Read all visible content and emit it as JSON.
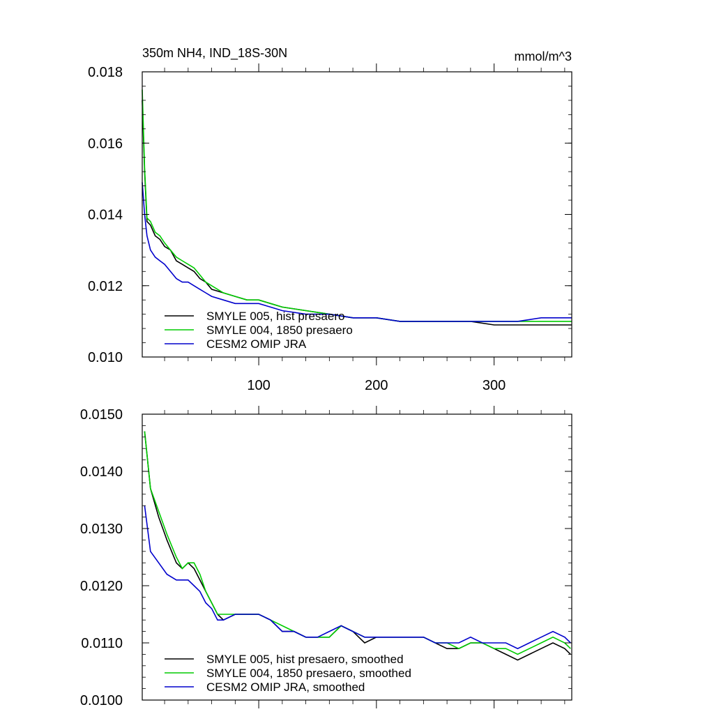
{
  "chart_data": [
    {
      "type": "line",
      "title": "350m NH4, IND_18S-30N",
      "units": "mmol/m^3",
      "xlim": [
        1,
        366
      ],
      "ylim": [
        0.01,
        0.018
      ],
      "x_ticks": [
        100,
        200,
        300
      ],
      "y_ticks": [
        "0.010",
        "0.012",
        "0.014",
        "0.016",
        "0.018"
      ],
      "grid": false,
      "legend_position": "bottom-left",
      "series": [
        {
          "name": "SMYLE 005, hist presaero",
          "color": "#000000",
          "points": [
            [
              1,
              0.0172
            ],
            [
              3,
              0.0152
            ],
            [
              5,
              0.0138
            ],
            [
              8,
              0.0137
            ],
            [
              12,
              0.0134
            ],
            [
              16,
              0.0133
            ],
            [
              20,
              0.0131
            ],
            [
              25,
              0.013
            ],
            [
              30,
              0.0127
            ],
            [
              35,
              0.0126
            ],
            [
              40,
              0.0125
            ],
            [
              45,
              0.0124
            ],
            [
              50,
              0.0122
            ],
            [
              55,
              0.0121
            ],
            [
              60,
              0.0119
            ],
            [
              70,
              0.0118
            ],
            [
              80,
              0.0117
            ],
            [
              90,
              0.0116
            ],
            [
              100,
              0.0116
            ],
            [
              110,
              0.0115
            ],
            [
              120,
              0.0114
            ],
            [
              140,
              0.0113
            ],
            [
              160,
              0.0112
            ],
            [
              180,
              0.0111
            ],
            [
              200,
              0.0111
            ],
            [
              220,
              0.011
            ],
            [
              240,
              0.011
            ],
            [
              260,
              0.011
            ],
            [
              280,
              0.011
            ],
            [
              300,
              0.0109
            ],
            [
              320,
              0.0109
            ],
            [
              340,
              0.0109
            ],
            [
              366,
              0.0109
            ]
          ]
        },
        {
          "name": "SMYLE 004, 1850 presaero",
          "color": "#00cc00",
          "points": [
            [
              1,
              0.0175
            ],
            [
              3,
              0.0153
            ],
            [
              5,
              0.0139
            ],
            [
              8,
              0.0138
            ],
            [
              12,
              0.0135
            ],
            [
              16,
              0.0134
            ],
            [
              20,
              0.0132
            ],
            [
              25,
              0.013
            ],
            [
              30,
              0.0128
            ],
            [
              35,
              0.0127
            ],
            [
              40,
              0.0126
            ],
            [
              45,
              0.0125
            ],
            [
              50,
              0.0123
            ],
            [
              55,
              0.0121
            ],
            [
              60,
              0.012
            ],
            [
              70,
              0.0118
            ],
            [
              80,
              0.0117
            ],
            [
              90,
              0.0116
            ],
            [
              100,
              0.0116
            ],
            [
              110,
              0.0115
            ],
            [
              120,
              0.0114
            ],
            [
              140,
              0.0113
            ],
            [
              160,
              0.0112
            ],
            [
              180,
              0.0111
            ],
            [
              200,
              0.0111
            ],
            [
              220,
              0.011
            ],
            [
              240,
              0.011
            ],
            [
              260,
              0.011
            ],
            [
              280,
              0.011
            ],
            [
              300,
              0.011
            ],
            [
              320,
              0.011
            ],
            [
              340,
              0.011
            ],
            [
              366,
              0.011
            ]
          ]
        },
        {
          "name": "CESM2 OMIP JRA",
          "color": "#0000cc",
          "points": [
            [
              1,
              0.0149
            ],
            [
              3,
              0.014
            ],
            [
              5,
              0.0134
            ],
            [
              8,
              0.013
            ],
            [
              12,
              0.0128
            ],
            [
              16,
              0.0127
            ],
            [
              20,
              0.0126
            ],
            [
              25,
              0.0124
            ],
            [
              30,
              0.0122
            ],
            [
              35,
              0.0121
            ],
            [
              40,
              0.0121
            ],
            [
              45,
              0.012
            ],
            [
              50,
              0.0119
            ],
            [
              55,
              0.0118
            ],
            [
              60,
              0.0117
            ],
            [
              70,
              0.0116
            ],
            [
              80,
              0.0115
            ],
            [
              90,
              0.0115
            ],
            [
              100,
              0.0115
            ],
            [
              110,
              0.0114
            ],
            [
              120,
              0.0113
            ],
            [
              140,
              0.0112
            ],
            [
              160,
              0.0112
            ],
            [
              180,
              0.0111
            ],
            [
              200,
              0.0111
            ],
            [
              220,
              0.011
            ],
            [
              240,
              0.011
            ],
            [
              260,
              0.011
            ],
            [
              280,
              0.011
            ],
            [
              300,
              0.011
            ],
            [
              320,
              0.011
            ],
            [
              340,
              0.0111
            ],
            [
              366,
              0.0111
            ]
          ]
        }
      ]
    },
    {
      "type": "line",
      "xlim": [
        1,
        366
      ],
      "ylim": [
        0.01,
        0.015
      ],
      "y_ticks": [
        "0.0100",
        "0.0110",
        "0.0120",
        "0.0130",
        "0.0140",
        "0.0150"
      ],
      "grid": false,
      "legend_position": "bottom-left",
      "series": [
        {
          "name": "SMYLE 005, hist presaero, smoothed",
          "color": "#000000",
          "points": [
            [
              3,
              0.0147
            ],
            [
              8,
              0.0137
            ],
            [
              15,
              0.0132
            ],
            [
              22,
              0.0128
            ],
            [
              30,
              0.0124
            ],
            [
              35,
              0.0123
            ],
            [
              40,
              0.0124
            ],
            [
              45,
              0.0123
            ],
            [
              50,
              0.0121
            ],
            [
              55,
              0.0119
            ],
            [
              60,
              0.0117
            ],
            [
              65,
              0.0115
            ],
            [
              70,
              0.0114
            ],
            [
              80,
              0.0115
            ],
            [
              90,
              0.0115
            ],
            [
              100,
              0.0115
            ],
            [
              110,
              0.0114
            ],
            [
              120,
              0.0112
            ],
            [
              130,
              0.0112
            ],
            [
              140,
              0.0111
            ],
            [
              150,
              0.0111
            ],
            [
              160,
              0.0111
            ],
            [
              170,
              0.0113
            ],
            [
              180,
              0.0112
            ],
            [
              190,
              0.011
            ],
            [
              200,
              0.0111
            ],
            [
              210,
              0.0111
            ],
            [
              220,
              0.0111
            ],
            [
              230,
              0.0111
            ],
            [
              240,
              0.0111
            ],
            [
              250,
              0.011
            ],
            [
              260,
              0.0109
            ],
            [
              270,
              0.0109
            ],
            [
              280,
              0.011
            ],
            [
              290,
              0.011
            ],
            [
              300,
              0.0109
            ],
            [
              310,
              0.0108
            ],
            [
              320,
              0.0107
            ],
            [
              330,
              0.0108
            ],
            [
              340,
              0.0109
            ],
            [
              350,
              0.011
            ],
            [
              360,
              0.0109
            ],
            [
              365,
              0.0108
            ]
          ]
        },
        {
          "name": "SMYLE 004, 1850 presaero, smoothed",
          "color": "#00cc00",
          "points": [
            [
              3,
              0.0147
            ],
            [
              8,
              0.0137
            ],
            [
              15,
              0.0133
            ],
            [
              22,
              0.0129
            ],
            [
              30,
              0.0125
            ],
            [
              35,
              0.0123
            ],
            [
              40,
              0.0124
            ],
            [
              45,
              0.0124
            ],
            [
              50,
              0.0122
            ],
            [
              55,
              0.0119
            ],
            [
              60,
              0.0117
            ],
            [
              65,
              0.0115
            ],
            [
              70,
              0.0115
            ],
            [
              80,
              0.0115
            ],
            [
              90,
              0.0115
            ],
            [
              100,
              0.0115
            ],
            [
              110,
              0.0114
            ],
            [
              120,
              0.0113
            ],
            [
              130,
              0.0112
            ],
            [
              140,
              0.0111
            ],
            [
              150,
              0.0111
            ],
            [
              160,
              0.0111
            ],
            [
              170,
              0.0113
            ],
            [
              180,
              0.0112
            ],
            [
              190,
              0.0111
            ],
            [
              200,
              0.0111
            ],
            [
              210,
              0.0111
            ],
            [
              220,
              0.0111
            ],
            [
              230,
              0.0111
            ],
            [
              240,
              0.0111
            ],
            [
              250,
              0.011
            ],
            [
              260,
              0.011
            ],
            [
              270,
              0.0109
            ],
            [
              280,
              0.011
            ],
            [
              290,
              0.011
            ],
            [
              300,
              0.0109
            ],
            [
              310,
              0.0109
            ],
            [
              320,
              0.0108
            ],
            [
              330,
              0.0109
            ],
            [
              340,
              0.011
            ],
            [
              350,
              0.0111
            ],
            [
              360,
              0.011
            ],
            [
              365,
              0.0109
            ]
          ]
        },
        {
          "name": "CESM2 OMIP JRA, smoothed",
          "color": "#0000cc",
          "points": [
            [
              3,
              0.0134
            ],
            [
              8,
              0.0126
            ],
            [
              15,
              0.0124
            ],
            [
              22,
              0.0122
            ],
            [
              30,
              0.0121
            ],
            [
              35,
              0.0121
            ],
            [
              40,
              0.0121
            ],
            [
              45,
              0.012
            ],
            [
              50,
              0.0119
            ],
            [
              55,
              0.0117
            ],
            [
              60,
              0.0116
            ],
            [
              65,
              0.0114
            ],
            [
              70,
              0.0114
            ],
            [
              80,
              0.0115
            ],
            [
              90,
              0.0115
            ],
            [
              100,
              0.0115
            ],
            [
              110,
              0.0114
            ],
            [
              120,
              0.0112
            ],
            [
              130,
              0.0112
            ],
            [
              140,
              0.0111
            ],
            [
              150,
              0.0111
            ],
            [
              160,
              0.0112
            ],
            [
              170,
              0.0113
            ],
            [
              180,
              0.0112
            ],
            [
              190,
              0.0111
            ],
            [
              200,
              0.0111
            ],
            [
              210,
              0.0111
            ],
            [
              220,
              0.0111
            ],
            [
              230,
              0.0111
            ],
            [
              240,
              0.0111
            ],
            [
              250,
              0.011
            ],
            [
              260,
              0.011
            ],
            [
              270,
              0.011
            ],
            [
              280,
              0.0111
            ],
            [
              290,
              0.011
            ],
            [
              300,
              0.011
            ],
            [
              310,
              0.011
            ],
            [
              320,
              0.0109
            ],
            [
              330,
              0.011
            ],
            [
              340,
              0.0111
            ],
            [
              350,
              0.0112
            ],
            [
              360,
              0.0111
            ],
            [
              365,
              0.011
            ]
          ]
        }
      ]
    }
  ]
}
